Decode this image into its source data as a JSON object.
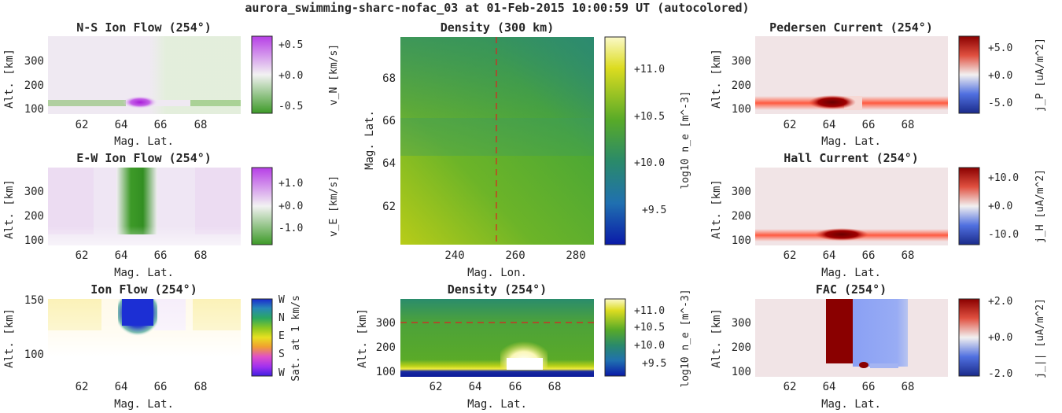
{
  "suptitle": "aurora_swimming-sharc-nofac_03 at 01-Feb-2015 10:00:59 UT (autocolored)",
  "colors": {
    "green": "#3a9a2a",
    "purple": "#b040e0",
    "red": "#a00000",
    "blue": "#1020c0",
    "guide": "#e02020"
  },
  "panels": [
    {
      "id": "ns-ion-flow",
      "title": "N-S Ion Flow (254°)",
      "xlabel": "Mag. Lat.",
      "ylabel": "Alt. [km]",
      "xticks": [
        "62",
        "64",
        "66",
        "68"
      ],
      "yticks": [
        "100",
        "200",
        "300"
      ],
      "colorbar": {
        "label": "v_N [km/s]",
        "ticks": [
          "+0.5",
          "+0.0",
          "-0.5"
        ]
      }
    },
    {
      "id": "ew-ion-flow",
      "title": "E-W Ion Flow (254°)",
      "xlabel": "Mag. Lat.",
      "ylabel": "Alt. [km]",
      "xticks": [
        "62",
        "64",
        "66",
        "68"
      ],
      "yticks": [
        "100",
        "200",
        "300"
      ],
      "colorbar": {
        "label": "v_E [km/s]",
        "ticks": [
          "+1.0",
          "+0.0",
          "-1.0"
        ]
      }
    },
    {
      "id": "ion-flow",
      "title": "Ion Flow (254°)",
      "xlabel": "Mag. Lat.",
      "ylabel": "Alt. [km]",
      "xticks": [
        "62",
        "64",
        "66",
        "68"
      ],
      "yticks": [
        "100",
        "150"
      ],
      "colorbar": {
        "label": "Sat. at 1 km/s",
        "ticks": [
          "W",
          "N",
          "E",
          "S",
          "W"
        ]
      }
    },
    {
      "id": "density-300",
      "title": "Density (300 km)",
      "xlabel": "Mag. Lon.",
      "ylabel": "Mag. Lat.",
      "xticks": [
        "240",
        "260",
        "280"
      ],
      "yticks": [
        "62",
        "64",
        "66",
        "68"
      ],
      "colorbar": {
        "label": "log10 n_e [m^-3]",
        "ticks": [
          "+11.0",
          "+10.5",
          "+10.0",
          "+9.5"
        ]
      }
    },
    {
      "id": "density-254",
      "title": "Density (254°)",
      "xlabel": "Mag. Lat.",
      "ylabel": "Alt. [km]",
      "xticks": [
        "62",
        "64",
        "66",
        "68"
      ],
      "yticks": [
        "100",
        "200",
        "300"
      ],
      "colorbar": {
        "label": "log10 n_e [m^-3]",
        "ticks": [
          "+11.0",
          "+10.5",
          "+10.0",
          "+9.5"
        ]
      }
    },
    {
      "id": "pedersen-current",
      "title": "Pedersen Current (254°)",
      "xlabel": "Mag. Lat.",
      "ylabel": "Alt. [km]",
      "xticks": [
        "62",
        "64",
        "66",
        "68"
      ],
      "yticks": [
        "100",
        "200",
        "300"
      ],
      "colorbar": {
        "label": "j_P [uA/m^2]",
        "ticks": [
          "+5.0",
          "+0.0",
          "-5.0"
        ]
      }
    },
    {
      "id": "hall-current",
      "title": "Hall Current (254°)",
      "xlabel": "Mag. Lat.",
      "ylabel": "Alt. [km]",
      "xticks": [
        "62",
        "64",
        "66",
        "68"
      ],
      "yticks": [
        "100",
        "200",
        "300"
      ],
      "colorbar": {
        "label": "j_H [uA/m^2]",
        "ticks": [
          "+10.0",
          "+0.0",
          "-10.0"
        ]
      }
    },
    {
      "id": "fac",
      "title": "FAC (254°)",
      "xlabel": "Mag. Lat.",
      "ylabel": "Alt. [km]",
      "xticks": [
        "62",
        "64",
        "66",
        "68"
      ],
      "yticks": [
        "100",
        "200",
        "300"
      ],
      "colorbar": {
        "label": "j_|| [uA/m^2]",
        "ticks": [
          "+2.0",
          "+0.0",
          "-2.0"
        ]
      }
    }
  ],
  "chart_data": [
    {
      "type": "heatmap",
      "title": "N-S Ion Flow (254°)",
      "xlabel": "Mag. Lat.",
      "ylabel": "Alt. [km]",
      "xlim": [
        60.3,
        70
      ],
      "ylim": [
        80,
        400
      ],
      "clim": [
        -0.7,
        0.7
      ],
      "colorbar_label": "v_N [km/s]",
      "colorbar_ticks": [
        0.5,
        0.0,
        -0.5
      ]
    },
    {
      "type": "heatmap",
      "title": "E-W Ion Flow (254°)",
      "xlabel": "Mag. Lat.",
      "ylabel": "Alt. [km]",
      "xlim": [
        60.3,
        70
      ],
      "ylim": [
        80,
        400
      ],
      "clim": [
        -1.4,
        1.4
      ],
      "colorbar_label": "v_E [km/s]",
      "colorbar_ticks": [
        1.0,
        0.0,
        -1.0
      ]
    },
    {
      "type": "heatmap",
      "title": "Ion Flow (254°)",
      "xlabel": "Mag. Lat.",
      "ylabel": "Alt. [km]",
      "xlim": [
        60.3,
        70
      ],
      "ylim": [
        80,
        150
      ],
      "colorbar_label": "Sat. at 1 km/s",
      "colorbar_ticks": [
        "W",
        "N",
        "E",
        "S",
        "W"
      ]
    },
    {
      "type": "heatmap",
      "title": "Density (300 km)",
      "xlabel": "Mag. Lon.",
      "ylabel": "Mag. Lat.",
      "xlim": [
        225,
        286
      ],
      "ylim": [
        60.3,
        70
      ],
      "clim": [
        9.1,
        11.4
      ],
      "colorbar_label": "log10 n_e [m^-3]",
      "colorbar_ticks": [
        11.0,
        10.5,
        10.0,
        9.5
      ],
      "guide_line": {
        "mag_lon": 254
      }
    },
    {
      "type": "heatmap",
      "title": "Density (254°)",
      "xlabel": "Mag. Lat.",
      "ylabel": "Alt. [km]",
      "xlim": [
        60.3,
        70
      ],
      "ylim": [
        80,
        400
      ],
      "clim": [
        9.1,
        11.4
      ],
      "colorbar_label": "log10 n_e [m^-3]",
      "colorbar_ticks": [
        11.0,
        10.5,
        10.0,
        9.5
      ],
      "guide_line": {
        "alt_km": 300
      }
    },
    {
      "type": "heatmap",
      "title": "Pedersen Current (254°)",
      "xlabel": "Mag. Lat.",
      "ylabel": "Alt. [km]",
      "xlim": [
        60.3,
        70
      ],
      "ylim": [
        80,
        400
      ],
      "clim": [
        -7,
        7
      ],
      "colorbar_label": "j_P [uA/m^2]",
      "colorbar_ticks": [
        5.0,
        0.0,
        -5.0
      ]
    },
    {
      "type": "heatmap",
      "title": "Hall Current (254°)",
      "xlabel": "Mag. Lat.",
      "ylabel": "Alt. [km]",
      "xlim": [
        60.3,
        70
      ],
      "ylim": [
        80,
        400
      ],
      "clim": [
        -14,
        14
      ],
      "colorbar_label": "j_H [uA/m^2]",
      "colorbar_ticks": [
        10.0,
        0.0,
        -10.0
      ]
    },
    {
      "type": "heatmap",
      "title": "FAC (254°)",
      "xlabel": "Mag. Lat.",
      "ylabel": "Alt. [km]",
      "xlim": [
        60.3,
        70
      ],
      "ylim": [
        80,
        400
      ],
      "clim": [
        -2.4,
        2.4
      ],
      "colorbar_label": "j_|| [uA/m^2]",
      "colorbar_ticks": [
        2.0,
        0.0,
        -2.0
      ]
    }
  ]
}
